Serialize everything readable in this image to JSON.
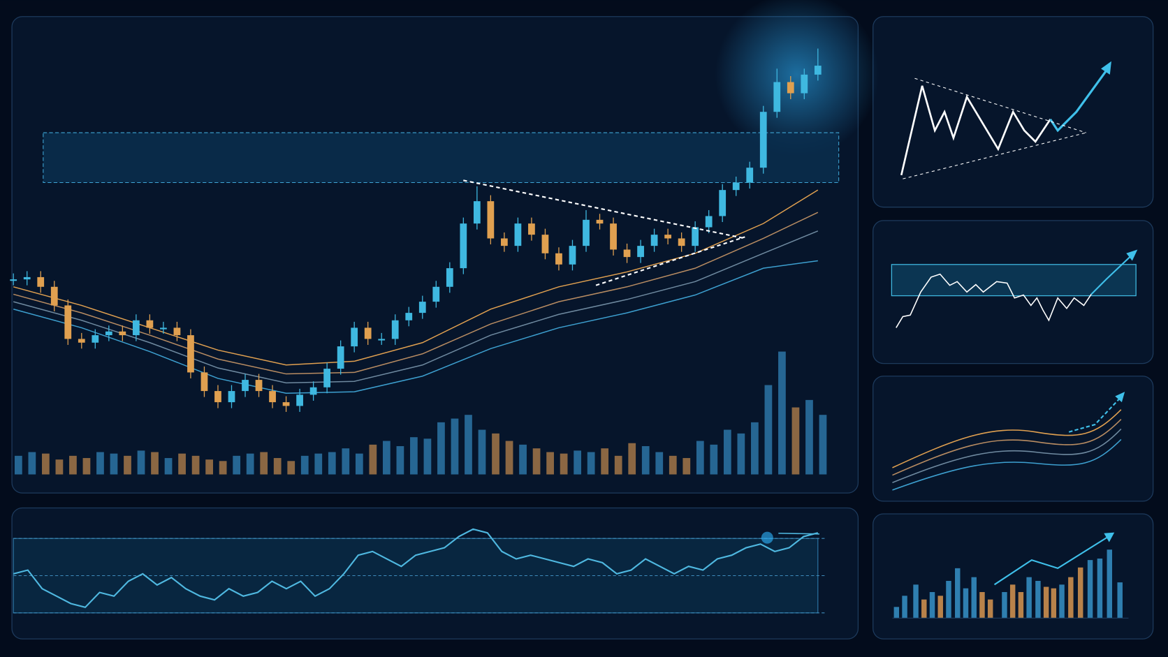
{
  "chart_data": [
    {
      "type": "candlestick",
      "values": [
        265,
        268,
        255,
        230,
        185,
        180,
        190,
        195,
        190,
        210,
        200,
        200,
        190,
        140,
        115,
        100,
        115,
        130,
        115,
        100,
        95,
        110,
        120,
        145,
        175,
        200,
        185,
        185,
        210,
        220,
        235,
        255,
        280,
        340,
        370,
        320,
        310,
        340,
        325,
        300,
        285,
        310,
        345,
        340,
        305,
        295,
        310,
        325,
        320,
        310,
        335,
        350,
        385,
        395,
        415,
        490,
        530,
        515,
        540,
        552
      ],
      "high": [
        273,
        276,
        276,
        263,
        238,
        193,
        198,
        203,
        203,
        218,
        218,
        208,
        208,
        198,
        148,
        123,
        123,
        138,
        138,
        123,
        108,
        118,
        128,
        153,
        183,
        208,
        208,
        193,
        218,
        228,
        243,
        263,
        288,
        348,
        390,
        378,
        328,
        348,
        348,
        333,
        308,
        318,
        358,
        353,
        348,
        313,
        318,
        333,
        333,
        328,
        343,
        358,
        393,
        403,
        423,
        498,
        548,
        538,
        548,
        575
      ],
      "low": [
        257,
        257,
        247,
        222,
        177,
        172,
        172,
        182,
        182,
        182,
        192,
        192,
        182,
        132,
        107,
        92,
        92,
        107,
        107,
        92,
        87,
        87,
        102,
        112,
        137,
        167,
        177,
        177,
        177,
        202,
        212,
        227,
        247,
        272,
        332,
        312,
        302,
        302,
        317,
        292,
        277,
        277,
        302,
        332,
        297,
        287,
        287,
        302,
        312,
        302,
        302,
        327,
        342,
        377,
        387,
        407,
        482,
        507,
        507,
        532
      ],
      "volume": [
        25,
        30,
        28,
        20,
        25,
        22,
        30,
        28,
        25,
        32,
        30,
        22,
        28,
        25,
        20,
        18,
        25,
        28,
        30,
        22,
        18,
        25,
        28,
        30,
        35,
        28,
        40,
        45,
        38,
        50,
        48,
        70,
        75,
        80,
        60,
        55,
        45,
        40,
        35,
        30,
        28,
        32,
        30,
        35,
        25,
        42,
        38,
        30,
        25,
        22,
        45,
        40,
        60,
        55,
        70,
        120,
        165,
        90,
        100,
        80
      ],
      "ylim": [
        0,
        600
      ],
      "volume_lim": [
        0,
        170
      ],
      "zone": [
        395,
        462
      ],
      "up_color": "#3fb8e0",
      "down_color": "#e0a050",
      "moving_averages": {
        "x": [
          0,
          5,
          10,
          15,
          20,
          25,
          30,
          35,
          40,
          45,
          50,
          55,
          59
        ],
        "series": [
          {
            "color": "#e0a050",
            "values": [
              255,
              230,
              200,
              170,
              150,
              155,
              180,
              225,
              255,
              275,
              300,
              340,
              385
            ]
          },
          {
            "color": "#b88c62",
            "values": [
              245,
              220,
              190,
              158,
              138,
              140,
              165,
              205,
              235,
              255,
              280,
              320,
              355
            ]
          },
          {
            "color": "#6f8aa0",
            "values": [
              235,
              210,
              180,
              146,
              126,
              128,
              150,
              190,
              218,
              238,
              262,
              300,
              330
            ]
          },
          {
            "color": "#3da0d0",
            "values": [
              225,
              200,
              168,
              132,
              112,
              114,
              135,
              172,
              200,
              220,
              244,
              280,
              290
            ]
          }
        ]
      }
    },
    {
      "type": "line",
      "values": [
        51,
        53,
        43,
        39,
        35,
        33,
        41,
        39,
        47,
        51,
        45,
        49,
        43,
        39,
        37,
        43,
        39,
        41,
        47,
        43,
        47,
        39,
        43,
        51,
        61,
        63,
        59,
        55,
        61,
        63,
        65,
        71,
        75,
        73,
        63,
        59,
        61,
        59,
        57,
        55,
        59,
        57,
        51,
        53,
        59,
        55,
        51,
        55,
        53,
        59,
        61,
        65,
        67,
        63,
        65,
        71,
        73
      ],
      "ylim": [
        10,
        90
      ],
      "levels": [
        30,
        50,
        70
      ],
      "color": "#4fb8e0"
    }
  ]
}
